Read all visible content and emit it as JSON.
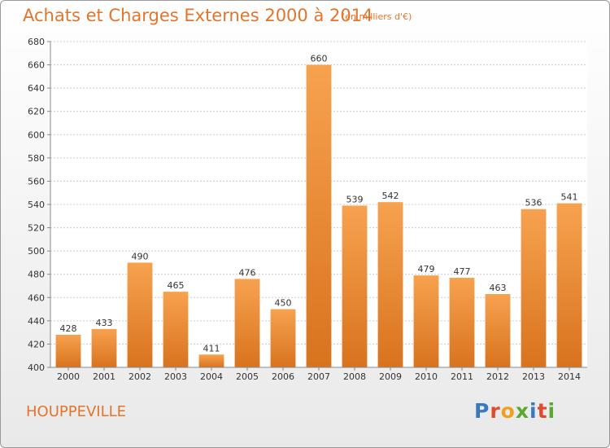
{
  "header": {
    "title": "Achats et Charges Externes 2000 à 2014",
    "subtitle": "(en milliers d'€)"
  },
  "footer": {
    "place": "HOUPPEVILLE",
    "logo_letters": [
      {
        "char": "P",
        "color": "#3a78c2"
      },
      {
        "char": "r",
        "color": "#e04a2f"
      },
      {
        "char": "o",
        "color": "#f0a020"
      },
      {
        "char": "x",
        "color": "#5aa832"
      },
      {
        "char": "i",
        "color": "#3a78c2"
      },
      {
        "char": "t",
        "color": "#e04a2f"
      },
      {
        "char": "i",
        "color": "#5aa832"
      }
    ]
  },
  "colors": {
    "accent": "#e2752b",
    "bar_top": "#f7a24f",
    "bar_bottom": "#d8731e",
    "grid": "#cccccc"
  },
  "chart_data": {
    "type": "bar",
    "title": "Achats et Charges Externes 2000 à 2014",
    "subtitle": "(en milliers d'€)",
    "categories": [
      "2000",
      "2001",
      "2002",
      "2003",
      "2004",
      "2005",
      "2006",
      "2007",
      "2008",
      "2009",
      "2010",
      "2011",
      "2012",
      "2013",
      "2014"
    ],
    "values": [
      428,
      433,
      490,
      465,
      411,
      476,
      450,
      660,
      539,
      542,
      479,
      477,
      463,
      536,
      541
    ],
    "xlabel": "",
    "ylabel": "",
    "ylim": [
      400,
      680
    ],
    "yticks": [
      400,
      420,
      440,
      460,
      480,
      500,
      520,
      540,
      560,
      580,
      600,
      620,
      640,
      660,
      680
    ],
    "grid": true,
    "legend": "none"
  }
}
